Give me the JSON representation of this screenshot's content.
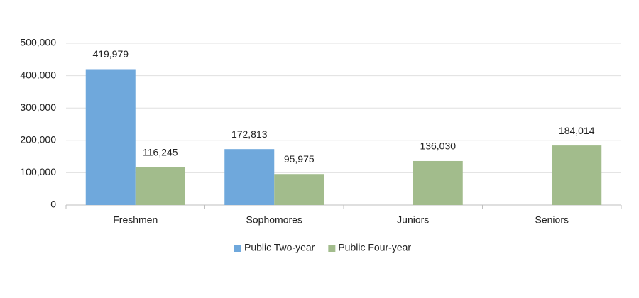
{
  "chart_data": {
    "type": "bar",
    "categories": [
      "Freshmen",
      "Sophomores",
      "Juniors",
      "Seniors"
    ],
    "series": [
      {
        "name": "Public Two-year",
        "color": "#6fa8dc",
        "values": [
          419979,
          172813,
          null,
          null
        ],
        "value_labels": [
          "419,979",
          "172,813",
          null,
          null
        ]
      },
      {
        "name": "Public Four-year",
        "color": "#a2bc8c",
        "values": [
          116245,
          95975,
          136030,
          184014
        ],
        "value_labels": [
          "116,245",
          "95,975",
          "136,030",
          "184,014"
        ]
      }
    ],
    "ylim": [
      0,
      500000
    ],
    "yticks": [
      0,
      {
        "value": 100000,
        "label": "100,000"
      },
      {
        "value": 200000,
        "label": "200,000"
      },
      {
        "value": 300000,
        "label": "300,000"
      },
      {
        "value": 400000,
        "label": "400,000"
      },
      {
        "value": 500000,
        "label": "500,000"
      }
    ],
    "grid": true,
    "legend": "bottom"
  }
}
